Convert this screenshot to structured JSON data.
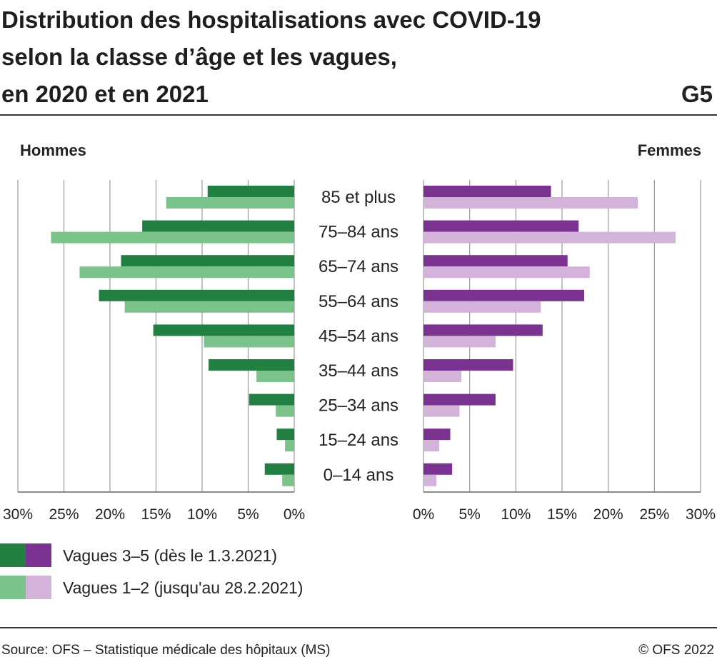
{
  "header": {
    "title_lines": [
      "Distribution des hospitalisations avec COVID-19",
      "selon la classe d’âge et les vagues,",
      "en 2020 et en 2021"
    ],
    "graph_number": "G5"
  },
  "colors": {
    "men_wave35": "#238043",
    "men_wave12": "#7cc28b",
    "women_wave35": "#7a3391",
    "women_wave12": "#d3b3d9",
    "grid": "#999999"
  },
  "legend": {
    "wave35": "Vagues 3–5 (dès le 1.3.2021)",
    "wave12": "Vagues 1–2 (jusqu'au 28.2.2021)"
  },
  "footer": {
    "source": "Source: OFS – Statistique médicale des hôpitaux (MS)",
    "copyright": "© OFS 2022"
  },
  "chart_data": {
    "type": "bar",
    "orientation": "horizontal",
    "categories": [
      "85 et plus",
      "75–84 ans",
      "65–74 ans",
      "55–64 ans",
      "45–54 ans",
      "35–44 ans",
      "25–34 ans",
      "15–24 ans",
      "0–14 ans"
    ],
    "xlim": [
      0,
      30
    ],
    "ticks": [
      0,
      5,
      10,
      15,
      20,
      25,
      30
    ],
    "tick_labels": [
      "0%",
      "5%",
      "10%",
      "15%",
      "20%",
      "25%",
      "30%"
    ],
    "grid": true,
    "panels": [
      {
        "name": "Hommes",
        "side": "left",
        "series": [
          {
            "name": "Vagues 3–5 (dès le 1.3.2021)",
            "values": [
              9.4,
              16.5,
              18.8,
              21.2,
              15.3,
              9.3,
              4.9,
              1.9,
              3.2
            ]
          },
          {
            "name": "Vagues 1–2 (jusqu'au 28.2.2021)",
            "values": [
              13.9,
              26.4,
              23.3,
              18.4,
              9.8,
              4.1,
              2.0,
              1.0,
              1.3
            ]
          }
        ]
      },
      {
        "name": "Femmes",
        "side": "right",
        "series": [
          {
            "name": "Vagues 3–5 (dès le 1.3.2021)",
            "values": [
              13.8,
              16.8,
              15.6,
              17.4,
              12.9,
              9.7,
              7.8,
              2.9,
              3.1
            ]
          },
          {
            "name": "Vagues 1–2 (jusqu'au 28.2.2021)",
            "values": [
              23.2,
              27.3,
              18.0,
              12.7,
              7.8,
              4.1,
              3.9,
              1.7,
              1.4
            ]
          }
        ]
      }
    ]
  }
}
